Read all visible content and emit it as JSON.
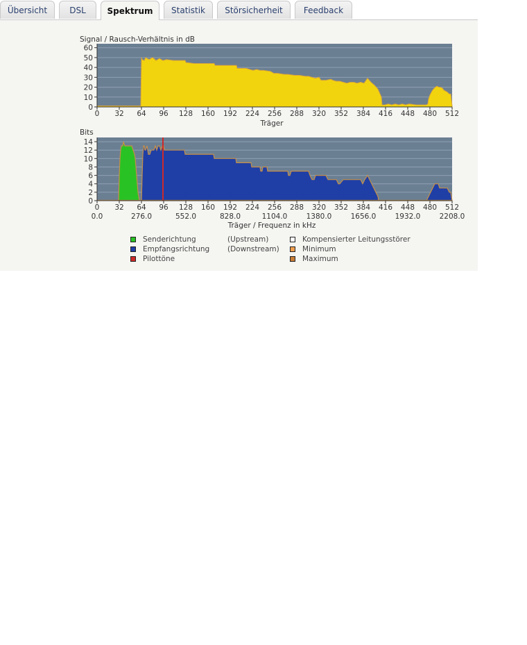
{
  "tabs": [
    {
      "label": "Übersicht",
      "active": false
    },
    {
      "label": "DSL",
      "active": false
    },
    {
      "label": "Spektrum",
      "active": true
    },
    {
      "label": "Statistik",
      "active": false
    },
    {
      "label": "Störsicherheit",
      "active": false
    },
    {
      "label": "Feedback",
      "active": false
    }
  ],
  "colors": {
    "plot_bg": "#6b7f93",
    "snr_fill": "#f2d40e",
    "upstream": "#29c224",
    "downstream": "#1f3fa6",
    "pilot": "#cc2a2a",
    "minmax_line": "#c58f4a"
  },
  "chart_data": [
    {
      "type": "area",
      "title": "Signal / Rausch-Verhältnis in dB",
      "xlabel": "Träger",
      "x_ticks": [
        0,
        32,
        64,
        96,
        128,
        160,
        192,
        224,
        256,
        288,
        320,
        352,
        384,
        416,
        448,
        480,
        512
      ],
      "y_ticks": [
        0,
        10,
        20,
        30,
        40,
        50,
        60
      ],
      "xlim": [
        0,
        512
      ],
      "ylim": [
        0,
        64
      ],
      "grid": true,
      "series": [
        {
          "x": [
            0,
            63,
            64,
            65,
            68,
            70,
            75,
            80,
            85,
            90,
            95,
            100,
            110,
            120,
            127,
            128,
            140,
            160,
            169,
            170,
            185,
            195,
            201,
            202,
            215,
            220,
            225,
            230,
            235,
            240,
            250,
            255,
            260,
            270,
            275,
            285,
            292,
            300,
            305,
            310,
            315,
            320,
            323,
            330,
            337,
            340,
            345,
            350,
            355,
            360,
            365,
            370,
            375,
            380,
            385,
            390,
            395,
            400,
            405,
            410,
            411,
            415,
            420,
            425,
            430,
            435,
            440,
            445,
            450,
            460,
            470,
            475,
            477,
            478,
            480,
            483,
            485,
            488,
            490,
            493,
            495,
            498,
            500,
            505,
            508,
            510,
            512
          ],
          "values": [
            1,
            1,
            50,
            48,
            47,
            50,
            48,
            50,
            47,
            49,
            47,
            48,
            47,
            47,
            47,
            45,
            44,
            44,
            44,
            42,
            42,
            42,
            42,
            39,
            39,
            38,
            37,
            38,
            37,
            37,
            36,
            34,
            34,
            33,
            33,
            32,
            32,
            31,
            31,
            30,
            29,
            30,
            27,
            27,
            28,
            27,
            26,
            26,
            25,
            24,
            25,
            25,
            24,
            25,
            24,
            29,
            25,
            22,
            18,
            10,
            2,
            2,
            3,
            2,
            3,
            2,
            3,
            2,
            3,
            2,
            2,
            2,
            3,
            8,
            12,
            16,
            18,
            20,
            21,
            20,
            20,
            19,
            17,
            15,
            13,
            13,
            1
          ]
        }
      ]
    },
    {
      "type": "area",
      "title": "Bits",
      "xlabel": "Träger / Frequenz in kHz",
      "x_ticks": [
        0,
        32,
        64,
        96,
        128,
        160,
        192,
        224,
        256,
        288,
        320,
        352,
        384,
        416,
        448,
        480,
        512
      ],
      "freq_ticks": [
        {
          "x": 0,
          "label": "0.0"
        },
        {
          "x": 64,
          "label": "276.0"
        },
        {
          "x": 128,
          "label": "552.0"
        },
        {
          "x": 192,
          "label": "828.0"
        },
        {
          "x": 256,
          "label": "1104.0"
        },
        {
          "x": 320,
          "label": "1380.0"
        },
        {
          "x": 384,
          "label": "1656.0"
        },
        {
          "x": 448,
          "label": "1932.0"
        },
        {
          "x": 512,
          "label": "2208.0"
        }
      ],
      "y_ticks": [
        0,
        2,
        4,
        6,
        8,
        10,
        12,
        14
      ],
      "xlim": [
        0,
        512
      ],
      "ylim": [
        0,
        15
      ],
      "grid": true,
      "series": [
        {
          "name": "Senderichtung",
          "x": [
            31,
            32,
            33,
            34,
            35,
            36,
            37,
            38,
            40,
            45,
            50,
            52,
            54,
            55,
            56,
            57,
            58,
            59,
            60,
            61
          ],
          "values": [
            0,
            6,
            10,
            12,
            13,
            13,
            13,
            14,
            13,
            13,
            13,
            12,
            11,
            10,
            8,
            6,
            4,
            2,
            1,
            0
          ]
        },
        {
          "name": "Empfangsrichtung",
          "x": [
            64,
            65,
            66,
            67,
            68,
            69,
            70,
            72,
            74,
            76,
            78,
            80,
            82,
            84,
            86,
            88,
            90,
            92,
            94,
            96,
            97,
            126,
            127,
            168,
            169,
            200,
            201,
            222,
            223,
            235,
            236,
            238,
            239,
            245,
            246,
            258,
            259,
            275,
            276,
            278,
            280,
            282,
            305,
            307,
            310,
            313,
            315,
            330,
            333,
            335,
            345,
            348,
            350,
            355,
            380,
            383,
            386,
            390,
            393,
            396,
            399,
            402,
            405,
            406,
            407,
            475,
            478,
            481,
            484,
            487,
            490,
            492,
            494,
            496,
            500,
            505,
            508,
            510,
            511,
            512
          ],
          "values": [
            0,
            6,
            11,
            13,
            13,
            12,
            12,
            13,
            11,
            11,
            12,
            12,
            12,
            13,
            12,
            13,
            13,
            12,
            13,
            13,
            12,
            12,
            11,
            11,
            10,
            10,
            9,
            9,
            8,
            8,
            7,
            7,
            8,
            8,
            7,
            7,
            7,
            7,
            6,
            6,
            7,
            7,
            7,
            6,
            5,
            5,
            6,
            6,
            5,
            5,
            5,
            4,
            4,
            5,
            5,
            4,
            5,
            6,
            5,
            4,
            3,
            2,
            1,
            0,
            0,
            0,
            1,
            2,
            3,
            4,
            4,
            4,
            3,
            3,
            3,
            3,
            2,
            2,
            1,
            0
          ]
        },
        {
          "name": "Pilottöne",
          "x": [
            95
          ],
          "values": [
            15
          ]
        }
      ]
    }
  ],
  "legend": {
    "senderichtung": "Senderichtung",
    "upstream_note": "(Upstream)",
    "empfangsrichtung": "Empfangsrichtung",
    "downstream_note": "(Downstream)",
    "pilottoene": "Pilottöne",
    "kompensiert": "Kompensierter Leitungsstörer",
    "minimum": "Minimum",
    "maximum": "Maximum",
    "swatch_colors": {
      "senderichtung": "#29c224",
      "empfangsrichtung": "#1f3fa6",
      "pilottoene": "#cc2a2a",
      "kompensiert": "#ffffff",
      "minimum": "#f0a050",
      "maximum": "#c87d35"
    }
  }
}
